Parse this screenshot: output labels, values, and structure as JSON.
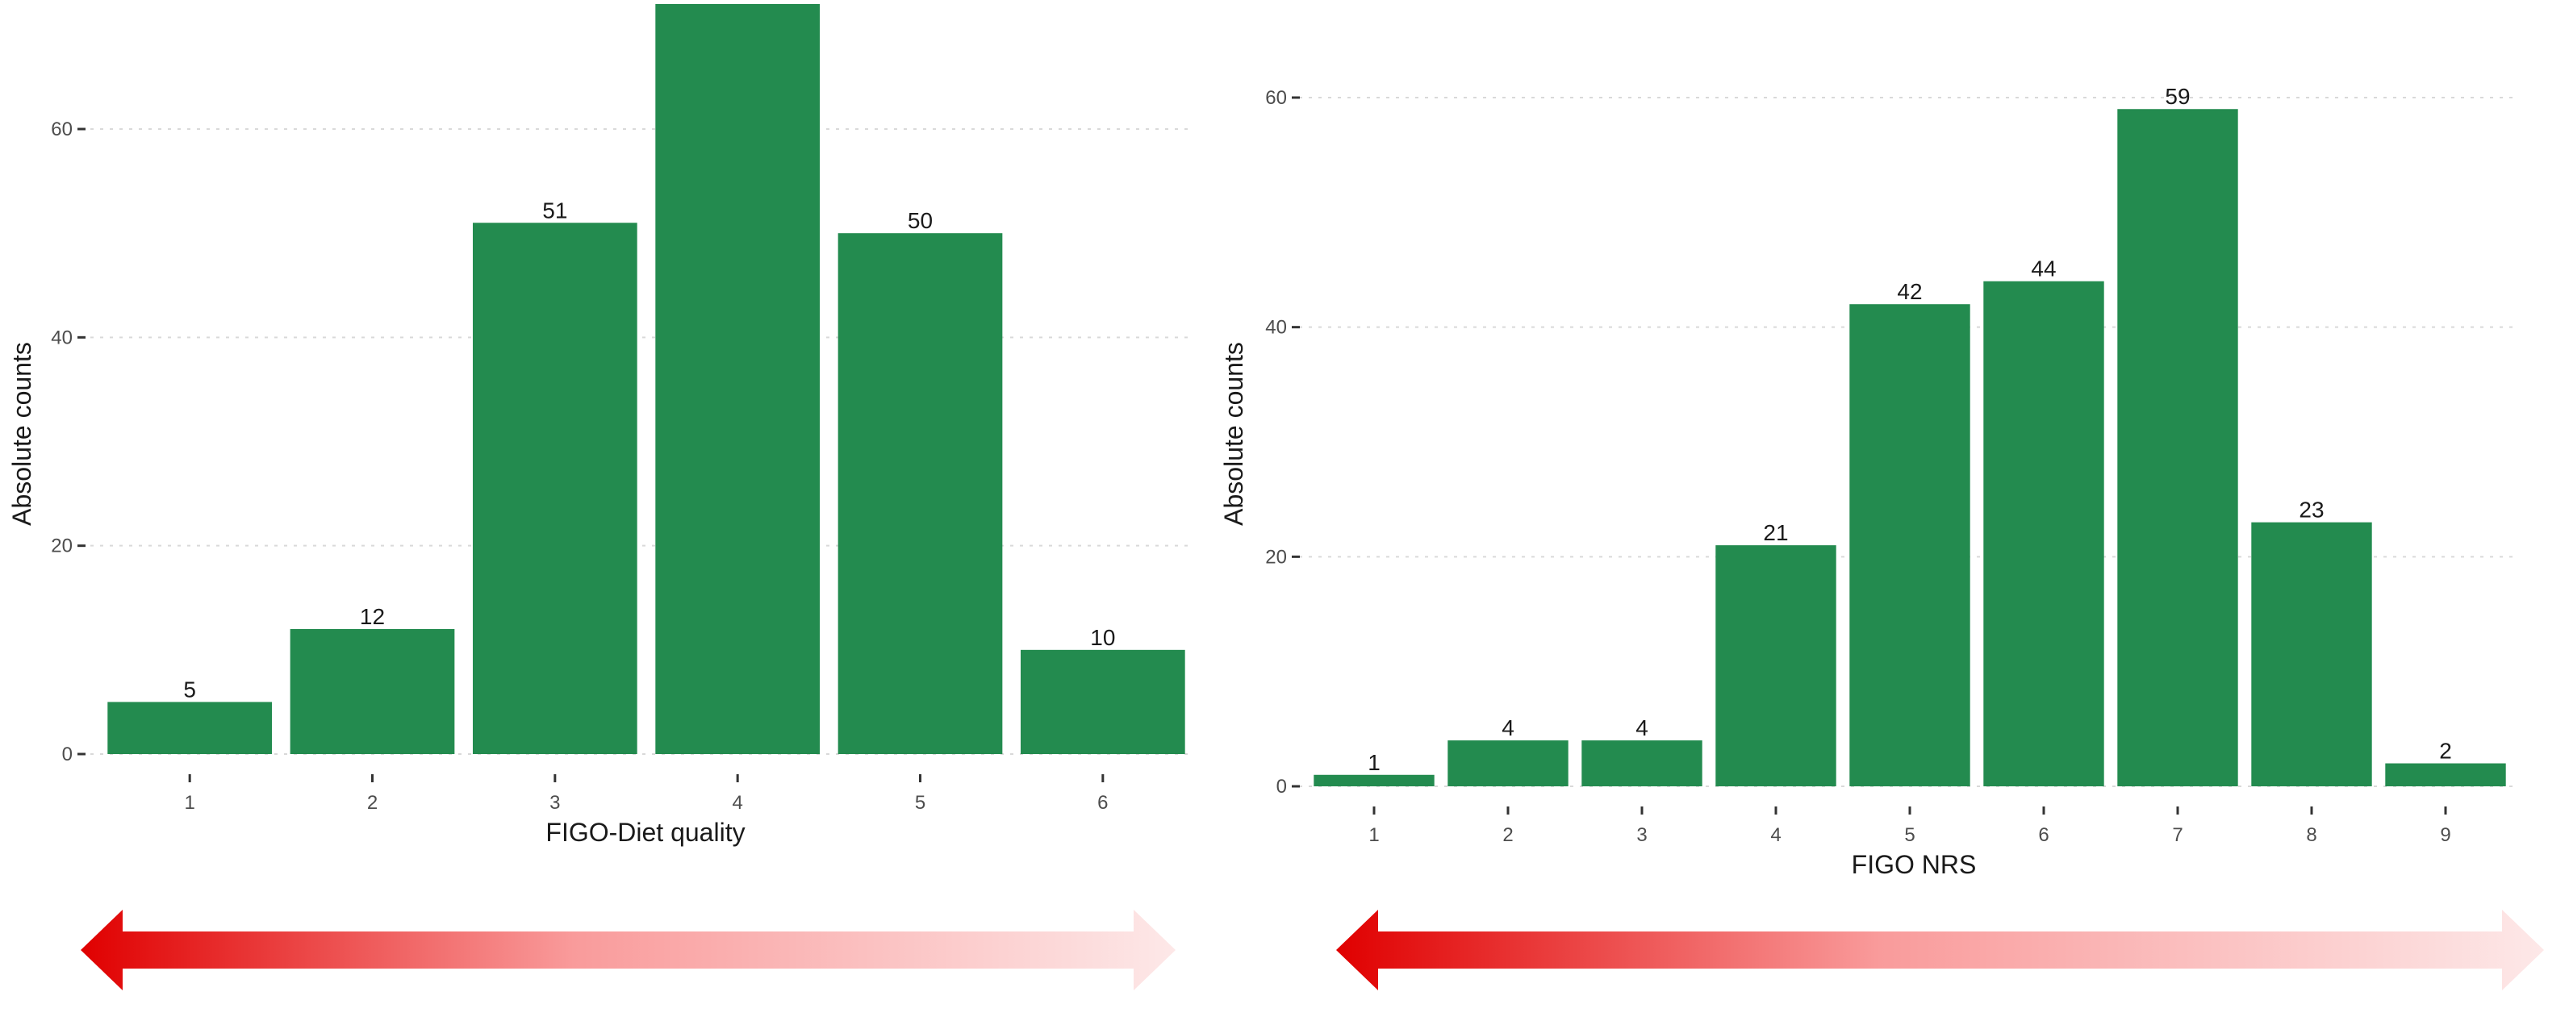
{
  "chart_data": [
    {
      "type": "bar",
      "categories": [
        "1",
        "2",
        "3",
        "4",
        "5",
        "6"
      ],
      "values": [
        5,
        12,
        51,
        72,
        50,
        10
      ],
      "xlabel": "FIGO-Diet quality",
      "ylabel": "Absolute counts",
      "yticks": [
        0,
        20,
        40,
        60
      ],
      "ylim": [
        0,
        72
      ],
      "grid": "horizontal dotted",
      "bar_color": "#238b4f",
      "data_labels": true,
      "legend": "none",
      "gradient_arrow": {
        "direction": "bidirectional",
        "color_from": "#e00000",
        "color_to": "#fde8e8"
      }
    },
    {
      "type": "bar",
      "categories": [
        "1",
        "2",
        "3",
        "4",
        "5",
        "6",
        "7",
        "8",
        "9"
      ],
      "values": [
        1,
        4,
        4,
        21,
        42,
        44,
        59,
        23,
        2
      ],
      "xlabel": "FIGO NRS",
      "ylabel": "Absolute counts",
      "yticks": [
        0,
        20,
        40,
        60
      ],
      "ylim": [
        0,
        60
      ],
      "grid": "horizontal dotted",
      "bar_color": "#238b4f",
      "data_labels": true,
      "legend": "none",
      "gradient_arrow": {
        "direction": "bidirectional",
        "color_from": "#e00000",
        "color_to": "#fde8e8"
      }
    }
  ]
}
